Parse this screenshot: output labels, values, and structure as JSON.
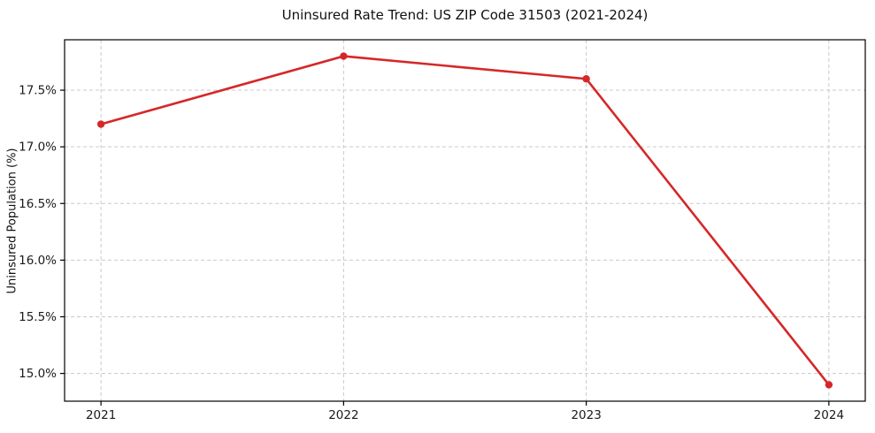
{
  "chart_data": {
    "type": "line",
    "title": "Uninsured Rate Trend: US ZIP Code 31503 (2021-2024)",
    "xlabel": "",
    "ylabel": "Uninsured Population (%)",
    "categories": [
      "2021",
      "2022",
      "2023",
      "2024"
    ],
    "x": [
      2021,
      2022,
      2023,
      2024
    ],
    "series": [
      {
        "name": "Uninsured rate",
        "values": [
          17.2,
          17.8,
          17.6,
          14.9
        ]
      }
    ],
    "value_unit": "%",
    "xlim": [
      2020.85,
      2024.15
    ],
    "ylim": [
      14.755,
      17.945
    ],
    "yticks": [
      15.0,
      15.5,
      16.0,
      16.5,
      17.0,
      17.5
    ],
    "ytick_labels": [
      "15.0%",
      "15.5%",
      "16.0%",
      "16.5%",
      "17.0%",
      "17.5%"
    ],
    "grid": true,
    "grid_style": "dashed",
    "legend_position": "none",
    "line_color": "#d62728",
    "marker": "circle",
    "grid_color": "#c9c9c9",
    "spine_color": "#000000",
    "tick_color": "#1a1a1a",
    "background_color": "#ffffff"
  }
}
